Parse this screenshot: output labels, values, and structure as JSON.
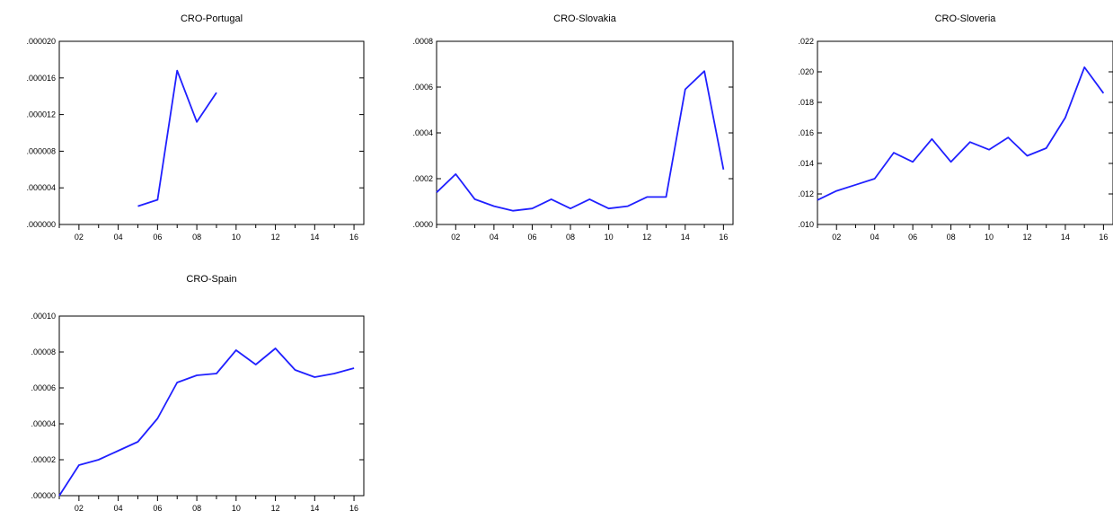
{
  "colors": {
    "line": "#2020ff",
    "axis": "#000000",
    "background": "#ffffff"
  },
  "chart_data": [
    {
      "type": "line",
      "title": "CRO-Portugal",
      "x": [
        2001,
        2002,
        2003,
        2004,
        2005,
        2006,
        2007,
        2008,
        2009,
        2010,
        2011,
        2012,
        2013,
        2014,
        2015,
        2016
      ],
      "xlim": [
        2001,
        2016.5
      ],
      "x_ticks": [
        "02",
        "04",
        "06",
        "08",
        "10",
        "12",
        "14",
        "16"
      ],
      "y": [
        null,
        null,
        null,
        null,
        2e-06,
        2.7e-06,
        1.68e-05,
        1.12e-05,
        1.44e-05,
        null,
        null,
        null,
        null,
        null,
        null,
        null
      ],
      "ylim": [
        0,
        2e-05
      ],
      "y_ticks": [
        ".000000",
        ".000004",
        ".000008",
        ".000012",
        ".000016",
        ".000020"
      ],
      "y_tick_values": [
        0,
        4e-06,
        8e-06,
        1.2e-05,
        1.6e-05,
        2e-05
      ]
    },
    {
      "type": "line",
      "title": "CRO-Slovakia",
      "x": [
        2001,
        2002,
        2003,
        2004,
        2005,
        2006,
        2007,
        2008,
        2009,
        2010,
        2011,
        2012,
        2013,
        2014,
        2015,
        2016
      ],
      "xlim": [
        2001,
        2016.5
      ],
      "x_ticks": [
        "02",
        "04",
        "06",
        "08",
        "10",
        "12",
        "14",
        "16"
      ],
      "y": [
        0.00014,
        0.00022,
        0.00011,
        8e-05,
        6e-05,
        7e-05,
        0.00011,
        7e-05,
        0.00011,
        7e-05,
        8e-05,
        0.00012,
        0.00012,
        0.00059,
        0.00067,
        0.00024
      ],
      "ylim": [
        0,
        0.0008
      ],
      "y_ticks": [
        ".0000",
        ".0002",
        ".0004",
        ".0006",
        ".0008"
      ],
      "y_tick_values": [
        0,
        0.0002,
        0.0004,
        0.0006,
        0.0008
      ]
    },
    {
      "type": "line",
      "title": "CRO-Sloveria",
      "x": [
        2001,
        2002,
        2003,
        2004,
        2005,
        2006,
        2007,
        2008,
        2009,
        2010,
        2011,
        2012,
        2013,
        2014,
        2015,
        2016
      ],
      "xlim": [
        2001,
        2016.5
      ],
      "x_ticks": [
        "02",
        "04",
        "06",
        "08",
        "10",
        "12",
        "14",
        "16"
      ],
      "y": [
        0.0116,
        0.0122,
        0.0126,
        0.013,
        0.0147,
        0.0141,
        0.0156,
        0.0141,
        0.0154,
        0.0149,
        0.0157,
        0.0145,
        0.015,
        0.017,
        0.0203,
        0.0186
      ],
      "ylim": [
        0.01,
        0.022
      ],
      "y_ticks": [
        ".010",
        ".012",
        ".014",
        ".016",
        ".018",
        ".020",
        ".022"
      ],
      "y_tick_values": [
        0.01,
        0.012,
        0.014,
        0.016,
        0.018,
        0.02,
        0.022
      ]
    },
    {
      "type": "line",
      "title": "CRO-Spain",
      "x": [
        2001,
        2002,
        2003,
        2004,
        2005,
        2006,
        2007,
        2008,
        2009,
        2010,
        2011,
        2012,
        2013,
        2014,
        2015,
        2016
      ],
      "xlim": [
        2001,
        2016.5
      ],
      "x_ticks": [
        "02",
        "04",
        "06",
        "08",
        "10",
        "12",
        "14",
        "16"
      ],
      "y": [
        0.0,
        1.7e-05,
        2e-05,
        2.5e-05,
        3e-05,
        4.3e-05,
        6.3e-05,
        6.7e-05,
        6.8e-05,
        8.1e-05,
        7.3e-05,
        8.2e-05,
        7e-05,
        6.6e-05,
        6.8e-05,
        7.1e-05
      ],
      "ylim": [
        0,
        0.0001
      ],
      "y_ticks": [
        ".00000",
        ".00002",
        ".00004",
        ".00006",
        ".00008",
        ".00010"
      ],
      "y_tick_values": [
        0,
        2e-05,
        4e-05,
        6e-05,
        8e-05,
        0.0001
      ]
    }
  ]
}
